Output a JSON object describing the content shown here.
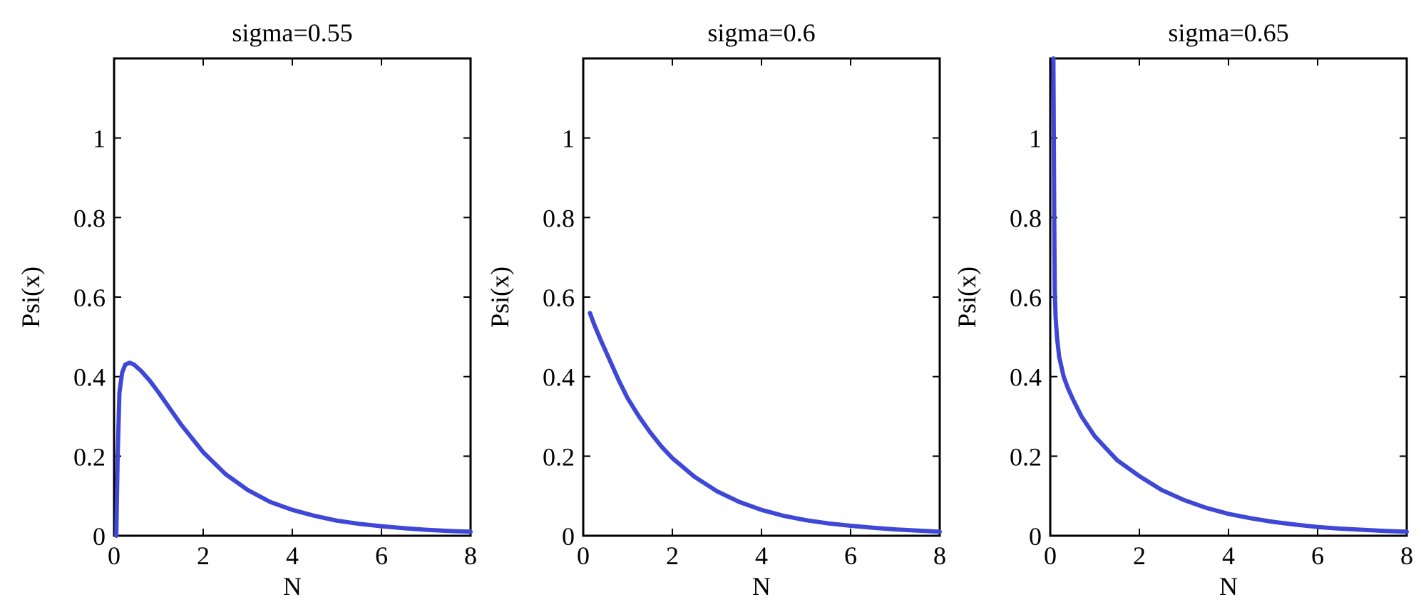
{
  "chart_data": [
    {
      "type": "line",
      "title": "sigma=0.55",
      "xlabel": "N",
      "ylabel": "Psi(x)",
      "xlim": [
        0,
        8
      ],
      "ylim": [
        0,
        1.2
      ],
      "xticks": [
        "0",
        "2",
        "4",
        "6",
        "8"
      ],
      "yticks": [
        "0",
        "0.2",
        "0.4",
        "0.6",
        "0.8",
        "1"
      ],
      "grid": false,
      "series": [
        {
          "color": "#3f48d6",
          "x": [
            0.05,
            0.08,
            0.12,
            0.18,
            0.25,
            0.35,
            0.45,
            0.6,
            0.8,
            1.0,
            1.25,
            1.5,
            1.75,
            2.0,
            2.5,
            3.0,
            3.5,
            4.0,
            4.5,
            5.0,
            5.5,
            6.0,
            6.5,
            7.0,
            7.5,
            8.0
          ],
          "y": [
            0.0,
            0.2,
            0.36,
            0.41,
            0.43,
            0.435,
            0.43,
            0.415,
            0.39,
            0.36,
            0.32,
            0.28,
            0.245,
            0.21,
            0.155,
            0.115,
            0.085,
            0.065,
            0.05,
            0.038,
            0.03,
            0.024,
            0.019,
            0.015,
            0.012,
            0.01
          ]
        }
      ]
    },
    {
      "type": "line",
      "title": "sigma=0.6",
      "xlabel": "N",
      "ylabel": "Psi(x)",
      "xlim": [
        0,
        8
      ],
      "ylim": [
        0,
        1.2
      ],
      "xticks": [
        "0",
        "2",
        "4",
        "6",
        "8"
      ],
      "yticks": [
        "0",
        "0.2",
        "0.4",
        "0.6",
        "0.8",
        "1"
      ],
      "grid": false,
      "series": [
        {
          "color": "#3f48d6",
          "x": [
            0.15,
            0.25,
            0.4,
            0.6,
            0.8,
            1.0,
            1.25,
            1.5,
            1.75,
            2.0,
            2.5,
            3.0,
            3.5,
            4.0,
            4.5,
            5.0,
            5.5,
            6.0,
            6.5,
            7.0,
            7.5,
            8.0
          ],
          "y": [
            0.56,
            0.53,
            0.49,
            0.44,
            0.39,
            0.345,
            0.3,
            0.26,
            0.225,
            0.195,
            0.148,
            0.112,
            0.085,
            0.065,
            0.05,
            0.039,
            0.031,
            0.025,
            0.02,
            0.016,
            0.013,
            0.01
          ]
        }
      ]
    },
    {
      "type": "line",
      "title": "sigma=0.65",
      "xlabel": "N",
      "ylabel": "Psi(x)",
      "xlim": [
        0,
        8
      ],
      "ylim": [
        0,
        1.2
      ],
      "xticks": [
        "0",
        "2",
        "4",
        "6",
        "8"
      ],
      "yticks": [
        "0",
        "0.2",
        "0.4",
        "0.6",
        "0.8",
        "1"
      ],
      "grid": false,
      "series": [
        {
          "color": "#3f48d6",
          "x": [
            0.07,
            0.08,
            0.09,
            0.1,
            0.12,
            0.15,
            0.2,
            0.3,
            0.4,
            0.5,
            0.7,
            1.0,
            1.25,
            1.5,
            2.0,
            2.5,
            3.0,
            3.5,
            4.0,
            4.5,
            5.0,
            5.5,
            6.0,
            6.5,
            7.0,
            7.5,
            8.0
          ],
          "y": [
            1.2,
            1.0,
            0.8,
            0.62,
            0.55,
            0.5,
            0.45,
            0.4,
            0.37,
            0.345,
            0.3,
            0.25,
            0.22,
            0.19,
            0.15,
            0.115,
            0.09,
            0.07,
            0.055,
            0.044,
            0.035,
            0.028,
            0.022,
            0.018,
            0.015,
            0.012,
            0.01
          ]
        }
      ]
    }
  ]
}
